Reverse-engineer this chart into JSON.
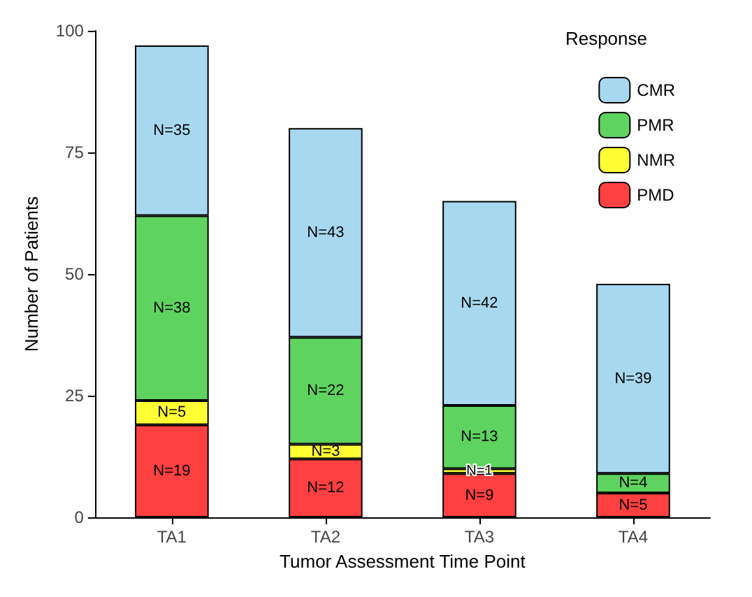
{
  "chart_data": {
    "type": "bar",
    "stacked": true,
    "xlabel": "Tumor Assessment Time Point",
    "ylabel": "Number of Patients",
    "legend_title": "Response",
    "legend": "top right",
    "grid": false,
    "categories": [
      "TA1",
      "TA2",
      "TA3",
      "TA4"
    ],
    "series": [
      {
        "name": "PMD",
        "color": "#ff4040",
        "values": [
          19,
          12,
          9,
          5
        ],
        "value_labels": [
          "N=19",
          "N=12",
          "N=9",
          "N=5"
        ]
      },
      {
        "name": "NMR",
        "color": "#ffff33",
        "values": [
          5,
          3,
          1,
          0
        ],
        "value_labels": [
          "N=5",
          "N=3",
          "N=1",
          null
        ]
      },
      {
        "name": "PMR",
        "color": "#5fd35f",
        "values": [
          38,
          22,
          13,
          4
        ],
        "value_labels": [
          "N=38",
          "N=22",
          "N=13",
          "N=4"
        ]
      },
      {
        "name": "CMR",
        "color": "#a8d8ef",
        "values": [
          35,
          43,
          42,
          39
        ],
        "value_labels": [
          "N=35",
          "N=43",
          "N=42",
          "N=39"
        ]
      }
    ],
    "ylim": [
      0,
      100
    ],
    "yticks": [
      0,
      25,
      50,
      75,
      100
    ]
  }
}
